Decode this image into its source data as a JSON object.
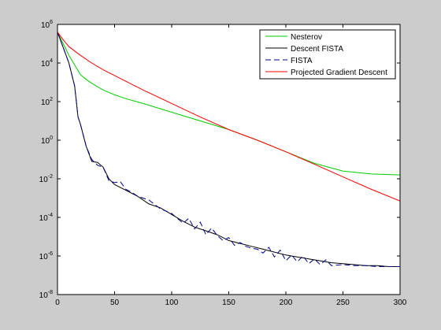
{
  "chart_data": {
    "type": "line",
    "title": "",
    "xlabel": "",
    "ylabel": "",
    "xlim": [
      0,
      300
    ],
    "ylim_log10": [
      -8,
      6
    ],
    "y_scale": "log",
    "x_ticks": [
      0,
      50,
      100,
      150,
      200,
      250,
      300
    ],
    "x_tick_labels": [
      "0",
      "50",
      "100",
      "150",
      "200",
      "250",
      "300"
    ],
    "y_ticks_log10": [
      -8,
      -6,
      -4,
      -2,
      0,
      2,
      4,
      6
    ],
    "y_tick_bases": [
      "10",
      "10",
      "10",
      "10",
      "10",
      "10",
      "10",
      "10"
    ],
    "y_tick_exps": [
      "-8",
      "-6",
      "-4",
      "-2",
      "0",
      "2",
      "4",
      "6"
    ],
    "grid": false,
    "legend_position": "top-right",
    "series": [
      {
        "name": "Nesterov",
        "color": "#00cc00",
        "dash": "solid",
        "x": [
          0,
          5,
          10,
          15,
          20,
          25,
          30,
          40,
          50,
          60,
          75,
          100,
          125,
          150,
          175,
          200,
          225,
          250,
          275,
          300
        ],
        "y_log10": [
          5.6,
          5.0,
          4.4,
          3.9,
          3.4,
          3.15,
          2.95,
          2.6,
          2.35,
          2.15,
          1.9,
          1.45,
          1.0,
          0.55,
          0.0,
          -0.6,
          -1.2,
          -1.6,
          -1.75,
          -1.8
        ]
      },
      {
        "name": "Descent FISTA",
        "color": "#000000",
        "dash": "solid",
        "x": [
          0,
          5,
          10,
          15,
          18,
          20,
          25,
          30,
          35,
          40,
          45,
          50,
          60,
          70,
          80,
          90,
          100,
          110,
          120,
          130,
          140,
          150,
          160,
          170,
          180,
          190,
          200,
          210,
          220,
          230,
          240,
          250,
          260,
          270,
          280,
          290,
          300
        ],
        "y_log10": [
          5.6,
          4.8,
          4.0,
          2.8,
          1.2,
          0.85,
          -0.3,
          -1.1,
          -1.15,
          -1.4,
          -2.0,
          -2.3,
          -2.6,
          -2.9,
          -3.3,
          -3.5,
          -3.85,
          -4.2,
          -4.5,
          -4.7,
          -4.9,
          -5.2,
          -5.35,
          -5.5,
          -5.65,
          -5.8,
          -5.95,
          -6.05,
          -6.15,
          -6.25,
          -6.35,
          -6.4,
          -6.45,
          -6.5,
          -6.5,
          -6.55,
          -6.55
        ]
      },
      {
        "name": "FISTA",
        "color": "#00008b",
        "dash": "dashed",
        "x": [
          0,
          5,
          10,
          15,
          18,
          20,
          25,
          30,
          35,
          40,
          45,
          50,
          55,
          60,
          65,
          70,
          80,
          90,
          100,
          110,
          115,
          120,
          125,
          130,
          135,
          140,
          145,
          150,
          155,
          160,
          165,
          170,
          175,
          180,
          185,
          190,
          195,
          200,
          205,
          210,
          215,
          220,
          225,
          230,
          235,
          240,
          250,
          260,
          270,
          280,
          290,
          300
        ],
        "y_log10": [
          5.6,
          4.8,
          4.0,
          2.8,
          1.2,
          0.85,
          -0.3,
          -1.0,
          -1.3,
          -1.4,
          -2.1,
          -2.2,
          -2.15,
          -2.55,
          -2.7,
          -2.9,
          -3.1,
          -3.55,
          -3.8,
          -4.3,
          -4.05,
          -4.6,
          -4.25,
          -4.9,
          -4.55,
          -4.95,
          -5.2,
          -5.05,
          -5.45,
          -5.3,
          -5.5,
          -5.6,
          -5.65,
          -5.85,
          -5.55,
          -6.05,
          -5.7,
          -6.25,
          -5.95,
          -6.3,
          -6.0,
          -6.4,
          -6.15,
          -6.45,
          -6.2,
          -6.5,
          -6.45,
          -6.5,
          -6.5,
          -6.55,
          -6.55,
          -6.55
        ]
      },
      {
        "name": "Projected Gradient Descent",
        "color": "#ff0000",
        "dash": "solid",
        "x": [
          0,
          5,
          10,
          20,
          30,
          40,
          50,
          75,
          100,
          125,
          150,
          175,
          200,
          225,
          250,
          275,
          300
        ],
        "y_log10": [
          5.6,
          5.2,
          4.85,
          4.4,
          4.0,
          3.65,
          3.35,
          2.6,
          1.9,
          1.2,
          0.55,
          0.0,
          -0.6,
          -1.25,
          -1.9,
          -2.55,
          -3.15
        ]
      }
    ]
  }
}
